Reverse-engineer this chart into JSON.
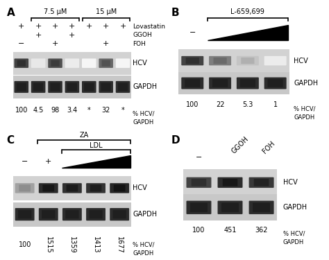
{
  "bg_color": "#ffffff",
  "panel_A": {
    "title_75": "7.5 μM",
    "title_15": "15 μM",
    "n_lanes": 7,
    "lovastatin_row": [
      "+",
      "+",
      "+",
      "+",
      "+",
      "+",
      "+"
    ],
    "ggoh_row": [
      "",
      "+",
      "",
      "+",
      "",
      "",
      ""
    ],
    "foh_row": [
      "−",
      "",
      "+",
      "",
      "",
      "+",
      ""
    ],
    "hcv_intensities": [
      0.8,
      0.1,
      0.75,
      0.08,
      0.04,
      0.65,
      0.04
    ],
    "gapdh_intensities": [
      0.9,
      0.9,
      0.9,
      0.9,
      0.9,
      0.9,
      0.9
    ],
    "values": [
      "100",
      "4.5",
      "98",
      "3.4",
      "*",
      "32",
      "*"
    ]
  },
  "panel_B": {
    "title": "L-659,699",
    "n_lanes": 4,
    "hcv_intensities": [
      0.8,
      0.55,
      0.25,
      0.08
    ],
    "gapdh_intensities": [
      0.9,
      0.9,
      0.9,
      0.9
    ],
    "values": [
      "100",
      "22",
      "5.3",
      "1"
    ],
    "lane0_label": "−"
  },
  "panel_C": {
    "title_za": "ZA",
    "title_ldl": "LDL",
    "n_lanes": 5,
    "lane_labels": [
      "−",
      "+",
      "",
      "",
      ""
    ],
    "hcv_intensities": [
      0.4,
      0.9,
      0.88,
      0.87,
      0.92
    ],
    "gapdh_intensities": [
      0.9,
      0.9,
      0.9,
      0.9,
      0.9
    ],
    "values": [
      "100",
      "1515",
      "1359",
      "1413",
      "1677"
    ]
  },
  "panel_D": {
    "n_lanes": 3,
    "lane_labels": [
      "−",
      "GGOH",
      "FOH"
    ],
    "hcv_intensities": [
      0.8,
      0.9,
      0.85
    ],
    "gapdh_intensities": [
      0.9,
      0.9,
      0.9
    ],
    "values": [
      "100",
      "451",
      "362"
    ]
  },
  "blot_bg_color": "#c8c8c8",
  "blot_light_bg": "#e0e0e0",
  "gapdh_bg_color": "#b8b8b8"
}
